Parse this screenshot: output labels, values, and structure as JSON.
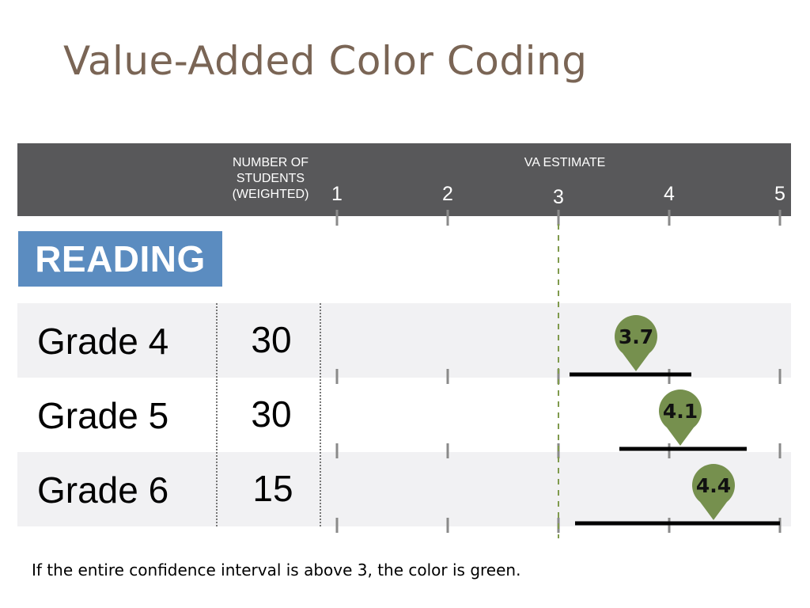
{
  "title": "Value-Added Color Coding",
  "header": {
    "students_line1": "NUMBER OF",
    "students_line2": "STUDENTS",
    "students_line3": "(WEIGHTED)",
    "va_label": "VA ESTIMATE"
  },
  "section_label": "READING",
  "footnote": "If the entire confidence interval is above 3, the color is green.",
  "colors": {
    "header": "#58585a",
    "section_badge": "#5b8cc0",
    "marker_green": "#76904e",
    "reference_line": "#7f9a4c",
    "title": "#7a6555"
  },
  "chart_data": {
    "type": "scatter",
    "xlabel": "VA ESTIMATE",
    "xlim": [
      1,
      5
    ],
    "ticks": [
      "1",
      "2",
      "3",
      "4",
      "5"
    ],
    "reference_value": 3,
    "rows": [
      {
        "label": "Grade 4",
        "students": "30",
        "estimate": 3.7,
        "estimate_label": "3.7",
        "ci_low": 3.1,
        "ci_high": 4.2
      },
      {
        "label": "Grade 5",
        "students": "30",
        "estimate": 4.1,
        "estimate_label": "4.1",
        "ci_low": 3.55,
        "ci_high": 4.7
      },
      {
        "label": "Grade 6",
        "students": "15",
        "estimate": 4.4,
        "estimate_label": "4.4",
        "ci_low": 3.15,
        "ci_high": 5.0
      }
    ]
  }
}
